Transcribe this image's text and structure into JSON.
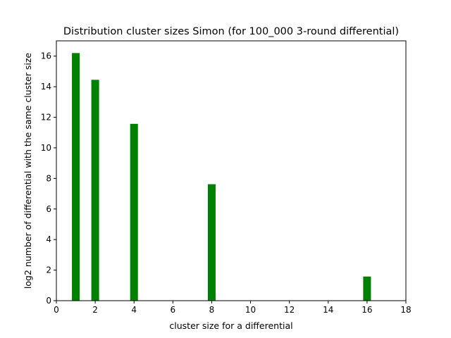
{
  "chart_data": {
    "type": "bar",
    "title": "Distribution cluster sizes Simon (for 100_000 3-round differential)",
    "xlabel": "cluster size for a differential",
    "ylabel": "log2 number of differential with the same cluster size",
    "xlim": [
      0,
      18
    ],
    "ylim": [
      0,
      17
    ],
    "xticks": [
      0,
      2,
      4,
      6,
      8,
      10,
      12,
      14,
      16,
      18
    ],
    "yticks": [
      0,
      2,
      4,
      6,
      8,
      10,
      12,
      14,
      16
    ],
    "bar_width": 0.4,
    "color": "#008000",
    "grid": false,
    "legend": "none",
    "x": [
      1,
      2,
      4,
      8,
      16
    ],
    "values": [
      16.2,
      14.45,
      11.57,
      7.62,
      1.58
    ]
  }
}
